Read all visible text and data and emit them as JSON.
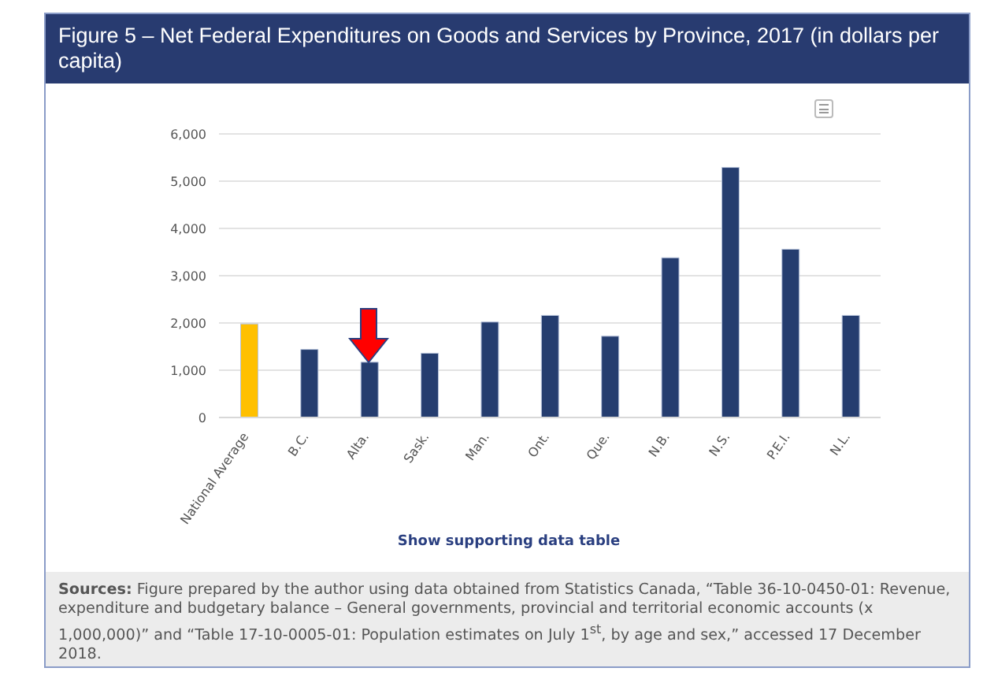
{
  "chart_data": {
    "type": "bar",
    "title": "Figure 5 – Net Federal Expenditures on Goods and Services by Province, 2017 (in dollars per capita)",
    "categories": [
      "National Average",
      "B.C.",
      "Alta.",
      "Sask.",
      "Man.",
      "Ont.",
      "Que.",
      "N.B.",
      "N.S.",
      "P.E.I.",
      "N.L."
    ],
    "values": [
      1980,
      1440,
      1170,
      1360,
      2020,
      2160,
      1720,
      3380,
      5290,
      3560,
      2160
    ],
    "colors": [
      "#ffc000",
      "#253d6f",
      "#253d6f",
      "#253d6f",
      "#253d6f",
      "#253d6f",
      "#253d6f",
      "#253d6f",
      "#253d6f",
      "#253d6f",
      "#253d6f"
    ],
    "ylim": [
      0,
      6000
    ],
    "yticks": [
      0,
      {
        "value": 1000,
        "label": "1,000"
      },
      {
        "value": 2000,
        "label": "2,000"
      },
      {
        "value": 3000,
        "label": "3,000"
      },
      {
        "value": 4000,
        "label": "4,000"
      },
      {
        "value": 5000,
        "label": "5,000"
      },
      {
        "value": 6000,
        "label": "6,000"
      }
    ],
    "grid": "y",
    "annotations": [
      "Show supporting data table",
      "Sources: Figure prepared by the author using data obtained from Statistics Canada, “Table 36-10-0450-01: Revenue, expenditure and budgetary balance – General governments, provincial and territorial economic accounts (x 1,000,000)” and “Table 17-10-0005-01: Population estimates on July 1$^{st}$, by age and sex,” accessed 17 December 2018."
    ]
  }
}
